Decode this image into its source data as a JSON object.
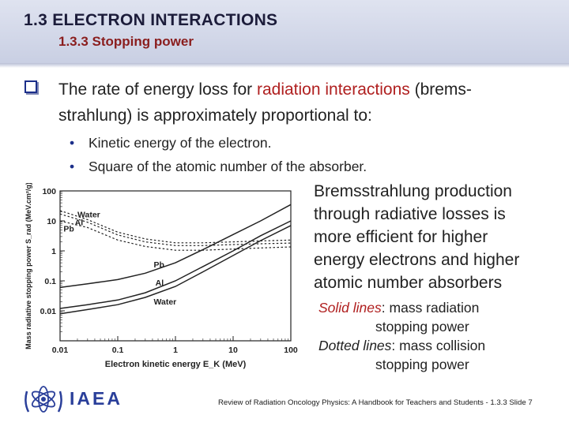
{
  "header": {
    "title": "1.3 ELECTRON INTERACTIONS",
    "subtitle": "1.3.3 Stopping power"
  },
  "main": {
    "line1_a": "The rate of energy loss for ",
    "line1_red": "radiation interactions",
    "line1_b": " (brems-",
    "line2": "strahlung) is approximately proportional to:",
    "sub_items": [
      "Kinetic energy of the electron.",
      "Square of the atomic number of the absorber."
    ],
    "bullet_char": "•"
  },
  "right_text": [
    "Bremsstrahlung production",
    "through radiative losses is",
    "more efficient for higher",
    "energy electrons and higher",
    "atomic number absorbers"
  ],
  "legend_notes": {
    "solid_label": "Solid lines",
    "solid_rest": ": mass radiation",
    "solid_rest2": "stopping power",
    "dotted_label": "Dotted lines",
    "dotted_rest": ": mass collision",
    "dotted_rest2": "stopping power"
  },
  "chart_data": {
    "type": "line",
    "xlabel": "Electron kinetic energy E_K (MeV)",
    "ylabel": "Mass radiative stopping power S_rad (MeV.cm²/g)",
    "xscale": "log",
    "yscale": "log",
    "xlim": [
      0.01,
      100
    ],
    "ylim": [
      0.001,
      100
    ],
    "x_ticks": [
      "0.01",
      "0.1",
      "1",
      "10",
      "100"
    ],
    "y_ticks": [
      "100",
      "10",
      "1",
      "0.1",
      "0.01"
    ],
    "x": [
      0.01,
      0.03,
      0.1,
      0.3,
      1,
      3,
      10,
      30,
      100
    ],
    "series": [
      {
        "name": "Pb",
        "style": "solid",
        "values": [
          0.06,
          0.08,
          0.11,
          0.18,
          0.4,
          1.1,
          3.5,
          10,
          35
        ]
      },
      {
        "name": "Al",
        "style": "solid",
        "values": [
          0.012,
          0.016,
          0.023,
          0.04,
          0.1,
          0.3,
          1.0,
          3.2,
          10
        ]
      },
      {
        "name": "Water",
        "style": "solid",
        "values": [
          0.008,
          0.011,
          0.016,
          0.028,
          0.065,
          0.2,
          0.7,
          2.2,
          7
        ]
      },
      {
        "name": "Water",
        "style": "dotted",
        "values": [
          22,
          11,
          4.2,
          2.5,
          1.85,
          1.85,
          2.0,
          2.15,
          2.3
        ]
      },
      {
        "name": "Al",
        "style": "dotted",
        "values": [
          17,
          9,
          3.4,
          2.0,
          1.5,
          1.5,
          1.62,
          1.72,
          1.82
        ]
      },
      {
        "name": "Pb",
        "style": "dotted",
        "values": [
          10,
          6,
          2.3,
          1.4,
          1.05,
          1.05,
          1.15,
          1.25,
          1.35
        ]
      }
    ],
    "labels": {
      "water_top": "Water",
      "al_top": "Al",
      "pb_top": "Pb",
      "pb_low": "Pb",
      "al_low": "Al",
      "water_low": "Water"
    }
  },
  "logo": {
    "text": "IAEA"
  },
  "footer": "Review of Radiation Oncology Physics: A Handbook for Teachers and Students - 1.3.3 Slide 7"
}
